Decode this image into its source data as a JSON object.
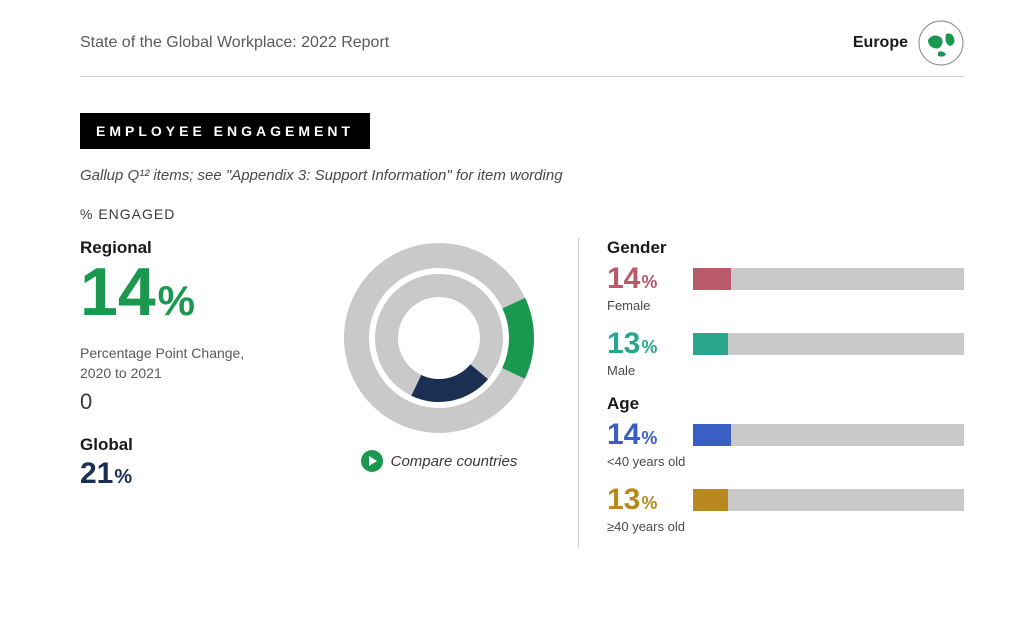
{
  "header": {
    "title": "State of the Global Workplace: 2022 Report",
    "region": "Europe"
  },
  "badge": "EMPLOYEE ENGAGEMENT",
  "subtitle": "Gallup Q¹² items; see \"Appendix 3: Support Information\" for item wording",
  "section_label": "% ENGAGED",
  "regional": {
    "label": "Regional",
    "value": "14",
    "pct": "%",
    "color": "#1a9850"
  },
  "change": {
    "caption_line1": "Percentage Point Change,",
    "caption_line2": "2020 to 2021",
    "value": "0"
  },
  "global": {
    "label": "Global",
    "value": "21",
    "pct": "%",
    "color": "#1a2f52"
  },
  "donut": {
    "bg_color": "#c9c9c9",
    "outer": {
      "value": 14,
      "color": "#1a9850",
      "start_deg": -25
    },
    "inner": {
      "value": 21,
      "color": "#1a2f52",
      "start_deg": 40
    },
    "radius_outer_o": 95,
    "radius_outer_i": 70,
    "radius_inner_o": 64,
    "radius_inner_i": 41
  },
  "compare_label": "Compare countries",
  "play_color": "#1a9850",
  "groups": {
    "gender": {
      "label": "Gender",
      "items": [
        {
          "value": "14",
          "pct": "%",
          "sub": "Female",
          "color": "#b85a6a",
          "fill_pct": 14
        },
        {
          "value": "13",
          "pct": "%",
          "sub": "Male",
          "color": "#2aa68f",
          "fill_pct": 13
        }
      ]
    },
    "age": {
      "label": "Age",
      "items": [
        {
          "value": "14",
          "pct": "%",
          "sub": "<40 years old",
          "color": "#3a5fc4",
          "fill_pct": 14
        },
        {
          "value": "13",
          "pct": "%",
          "sub": "≥40 years old",
          "color": "#b8891f",
          "fill_pct": 13
        }
      ]
    }
  },
  "bar_bg_color": "#c9c9c9"
}
